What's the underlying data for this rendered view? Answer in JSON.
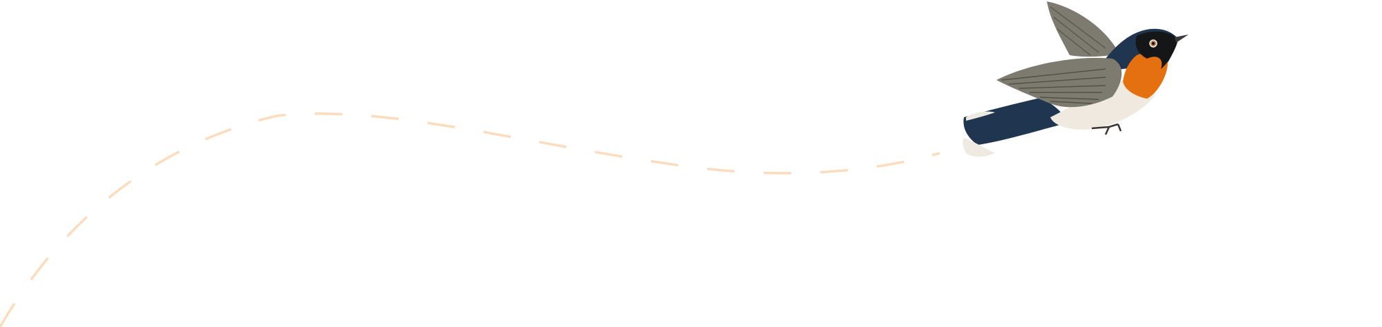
{
  "colors": {
    "background": "#ffffff",
    "flight_path": "#fcdcbc",
    "bird_back": "#1f3550",
    "bird_throat": "#e5700f",
    "bird_belly": "#efe9df",
    "bird_wing": "#7d7a70"
  },
  "icons": {
    "flight_path": "dashed-curve",
    "bird": "flycatcher-illustration"
  }
}
